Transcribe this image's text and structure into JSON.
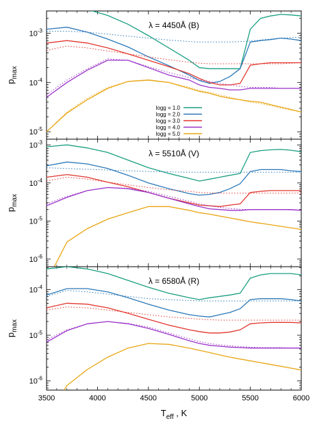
{
  "figure": {
    "xlabel_main": "T",
    "xlabel_sub": "eff",
    "xlabel_tail": " , K",
    "ylabel_main": "p",
    "ylabel_sub": "max"
  },
  "colors": {
    "logg_1.0": "#1a9e82",
    "logg_2.0": "#2a78b8",
    "logg_3.0": "#e2362e",
    "logg_4.0": "#9a32c8",
    "logg_5.0": "#e8a512"
  },
  "chart_data": [
    {
      "type": "line",
      "title": "λ = 4450Å (B)",
      "x": [
        3500,
        3700,
        3900,
        4100,
        4300,
        4500,
        4700,
        4900,
        5000,
        5100,
        5200,
        5300,
        5400,
        5500,
        5600,
        5700,
        5800,
        5900,
        6000
      ],
      "xlim": [
        3500,
        6000
      ],
      "ylim_log": [
        -5.15,
        -2.55
      ],
      "yticks": [
        -5,
        -4,
        -3
      ],
      "ytick_labels": [
        "10^-5",
        "10^-4",
        "10^-3"
      ],
      "legend_position": "center",
      "series": [
        {
          "name": "logg = 1.0",
          "color": "#1a9e82",
          "solid": [
            -2.52,
            -2.47,
            -2.52,
            -2.64,
            -2.82,
            -3.05,
            -3.3,
            -3.55,
            -3.7,
            -3.72,
            -3.72,
            -3.72,
            -3.72,
            -2.92,
            -2.7,
            -2.65,
            -2.62,
            -2.63,
            -2.65
          ],
          "dotted": null
        },
        {
          "name": "logg = 2.0",
          "color": "#2a78b8",
          "solid": [
            -2.92,
            -2.88,
            -2.98,
            -3.12,
            -3.28,
            -3.48,
            -3.66,
            -3.85,
            -3.96,
            -4.02,
            -3.98,
            -3.88,
            -3.72,
            -3.18,
            -3.15,
            -3.13,
            -3.1,
            -3.12,
            -3.15
          ],
          "dotted": [
            -2.96,
            -2.96,
            -2.98,
            -3.02,
            -3.06,
            -3.1,
            -3.14,
            -3.17,
            -3.18,
            -3.18,
            -3.18,
            -3.18,
            -3.17,
            -3.16,
            -3.14,
            -3.12,
            -3.1,
            -3.09,
            -3.08
          ]
        },
        {
          "name": "logg = 3.0",
          "color": "#e2362e",
          "solid": [
            -3.2,
            -3.15,
            -3.2,
            -3.3,
            -3.42,
            -3.55,
            -3.68,
            -3.82,
            -3.92,
            -4.0,
            -4.05,
            -4.05,
            -4.02,
            -3.65,
            -3.62,
            -3.6,
            -3.6,
            -3.6,
            -3.6
          ],
          "dotted": [
            -3.35,
            -3.26,
            -3.3,
            -3.36,
            -3.42,
            -3.48,
            -3.54,
            -3.59,
            -3.61,
            -3.62,
            -3.62,
            -3.62,
            -3.62,
            -3.62,
            -3.62,
            -3.62,
            -3.62,
            -3.61,
            -3.6
          ]
        },
        {
          "name": "logg = 4.0",
          "color": "#9a32c8",
          "solid": [
            -4.3,
            -4.0,
            -3.75,
            -3.55,
            -3.55,
            -3.7,
            -3.85,
            -3.95,
            -4.05,
            -4.1,
            -4.12,
            -4.15,
            -4.15,
            -4.12,
            -4.12,
            -4.12,
            -4.12,
            -4.12,
            -4.12
          ],
          "dotted": [
            -4.25,
            -3.95,
            -3.72,
            -3.52,
            -3.55,
            -3.68,
            -3.8,
            -3.9,
            -3.95,
            -3.98,
            -4.02,
            -4.05,
            -4.08,
            -4.1,
            -4.1,
            -4.1,
            -4.12,
            -4.12,
            -4.12
          ]
        },
        {
          "name": "logg = 5.0",
          "color": "#e8a512",
          "solid": [
            -5.0,
            -4.62,
            -4.35,
            -4.12,
            -3.98,
            -3.95,
            -4.0,
            -4.12,
            -4.18,
            -4.22,
            -4.28,
            -4.32,
            -4.35,
            -4.38,
            -4.4,
            -4.45,
            -4.5,
            -4.55,
            -4.6
          ],
          "dotted": [
            -5.0,
            -4.6,
            -4.32,
            -4.1,
            -3.98,
            -3.96,
            -4.0,
            -4.1,
            -4.16,
            -4.2,
            -4.25,
            -4.3,
            -4.35,
            -4.4,
            -4.43,
            -4.47,
            -4.52,
            -4.56,
            -4.6
          ]
        }
      ]
    },
    {
      "type": "line",
      "title": "λ = 5510Å (V)",
      "x": [
        3500,
        3700,
        3900,
        4100,
        4300,
        4500,
        4700,
        4900,
        5000,
        5100,
        5200,
        5300,
        5400,
        5500,
        5600,
        5700,
        5800,
        5900,
        6000
      ],
      "xlim": [
        3500,
        6000
      ],
      "ylim_log": [
        -6.2,
        -2.85
      ],
      "yticks": [
        -6,
        -5,
        -4,
        -3
      ],
      "ytick_labels": [
        "10^-6",
        "10^-5",
        "10^-4",
        "10^-3"
      ],
      "series": [
        {
          "name": "logg = 1.0",
          "color": "#1a9e82",
          "solid": [
            -3.05,
            -3.0,
            -3.08,
            -3.2,
            -3.4,
            -3.6,
            -3.75,
            -3.88,
            -3.95,
            -3.9,
            -3.85,
            -3.8,
            -3.75,
            -3.2,
            -3.15,
            -3.13,
            -3.12,
            -3.14,
            -3.18
          ],
          "dotted": null
        },
        {
          "name": "logg = 2.0",
          "color": "#2a78b8",
          "solid": [
            -3.55,
            -3.45,
            -3.5,
            -3.62,
            -3.8,
            -4.0,
            -4.15,
            -4.28,
            -4.32,
            -4.3,
            -4.25,
            -4.15,
            -4.02,
            -3.7,
            -3.65,
            -3.65,
            -3.65,
            -3.68,
            -3.7
          ],
          "dotted": [
            -3.6,
            -3.62,
            -3.64,
            -3.66,
            -3.68,
            -3.7,
            -3.71,
            -3.72,
            -3.72,
            -3.72,
            -3.72,
            -3.72,
            -3.72,
            -3.72,
            -3.72,
            -3.72,
            -3.72,
            -3.72,
            -3.72
          ]
        },
        {
          "name": "logg = 3.0",
          "color": "#e2362e",
          "solid": [
            -3.85,
            -3.78,
            -3.85,
            -3.98,
            -4.1,
            -4.25,
            -4.4,
            -4.52,
            -4.58,
            -4.6,
            -4.62,
            -4.58,
            -4.55,
            -4.25,
            -4.22,
            -4.2,
            -4.2,
            -4.2,
            -4.2
          ],
          "dotted": [
            -3.95,
            -3.85,
            -3.9,
            -3.98,
            -4.05,
            -4.12,
            -4.18,
            -4.22,
            -4.25,
            -4.26,
            -4.27,
            -4.27,
            -4.27,
            -4.27,
            -4.27,
            -4.27,
            -4.27,
            -4.27,
            -4.26
          ]
        },
        {
          "name": "logg = 4.0",
          "color": "#9a32c8",
          "solid": [
            -4.6,
            -4.38,
            -4.2,
            -4.12,
            -4.15,
            -4.25,
            -4.4,
            -4.55,
            -4.62,
            -4.68,
            -4.7,
            -4.72,
            -4.72,
            -4.7,
            -4.7,
            -4.7,
            -4.7,
            -4.7,
            -4.72
          ],
          "dotted": [
            -4.55,
            -4.35,
            -4.2,
            -4.12,
            -4.14,
            -4.22,
            -4.35,
            -4.48,
            -4.55,
            -4.6,
            -4.64,
            -4.67,
            -4.69,
            -4.7,
            -4.7,
            -4.7,
            -4.7,
            -4.71,
            -4.72
          ]
        },
        {
          "name": "logg = 5.0",
          "color": "#e8a512",
          "solid": [
            -6.6,
            -5.55,
            -5.2,
            -4.95,
            -4.78,
            -4.62,
            -4.62,
            -4.72,
            -4.78,
            -4.82,
            -4.87,
            -4.92,
            -4.97,
            -5.02,
            -5.06,
            -5.1,
            -5.14,
            -5.18,
            -5.22
          ],
          "dotted": null
        }
      ]
    },
    {
      "type": "line",
      "title": "λ = 6580Å (R)",
      "x": [
        3500,
        3700,
        3900,
        4100,
        4300,
        4500,
        4700,
        4900,
        5000,
        5100,
        5200,
        5300,
        5400,
        5500,
        5600,
        5700,
        5800,
        5900,
        6000
      ],
      "xlim": [
        3500,
        6000
      ],
      "ylim_log": [
        -6.2,
        -3.5
      ],
      "yticks": [
        -6,
        -5,
        -4
      ],
      "ytick_labels": [
        "10^-6",
        "10^-5",
        "10^-4"
      ],
      "series": [
        {
          "name": "logg = 1.0",
          "color": "#1a9e82",
          "solid": [
            -3.55,
            -3.5,
            -3.55,
            -3.65,
            -3.8,
            -3.95,
            -4.08,
            -4.18,
            -4.22,
            -4.18,
            -4.15,
            -4.12,
            -4.08,
            -3.75,
            -3.68,
            -3.65,
            -3.65,
            -3.65,
            -3.68
          ],
          "dotted": null
        },
        {
          "name": "logg = 2.0",
          "color": "#2a78b8",
          "solid": [
            -4.12,
            -3.98,
            -3.98,
            -4.05,
            -4.18,
            -4.32,
            -4.45,
            -4.55,
            -4.58,
            -4.6,
            -4.55,
            -4.5,
            -4.42,
            -4.22,
            -4.2,
            -4.2,
            -4.2,
            -4.22,
            -4.25
          ],
          "dotted": [
            -4.15,
            -4.02,
            -4.05,
            -4.1,
            -4.15,
            -4.2,
            -4.22,
            -4.24,
            -4.25,
            -4.25,
            -4.25,
            -4.25,
            -4.25,
            -4.25,
            -4.25,
            -4.25,
            -4.25,
            -4.25,
            -4.25
          ]
        },
        {
          "name": "logg = 3.0",
          "color": "#e2362e",
          "solid": [
            -4.4,
            -4.3,
            -4.32,
            -4.4,
            -4.52,
            -4.65,
            -4.78,
            -4.88,
            -4.92,
            -4.95,
            -4.95,
            -4.93,
            -4.88,
            -4.75,
            -4.73,
            -4.72,
            -4.72,
            -4.72,
            -4.73
          ],
          "dotted": [
            -4.45,
            -4.38,
            -4.4,
            -4.45,
            -4.5,
            -4.55,
            -4.6,
            -4.63,
            -4.65,
            -4.66,
            -4.67,
            -4.67,
            -4.67,
            -4.67,
            -4.67,
            -4.67,
            -4.67,
            -4.67,
            -4.67
          ]
        },
        {
          "name": "logg = 4.0",
          "color": "#9a32c8",
          "solid": [
            -5.15,
            -4.9,
            -4.75,
            -4.7,
            -4.75,
            -4.85,
            -4.98,
            -5.12,
            -5.18,
            -5.22,
            -5.24,
            -5.26,
            -5.27,
            -5.28,
            -5.28,
            -5.28,
            -5.28,
            -5.28,
            -5.28
          ],
          "dotted": [
            -5.1,
            -4.88,
            -4.75,
            -4.7,
            -4.74,
            -4.82,
            -4.95,
            -5.08,
            -5.14,
            -5.18,
            -5.21,
            -5.23,
            -5.25,
            -5.26,
            -5.27,
            -5.27,
            -5.27,
            -5.28,
            -5.28
          ]
        },
        {
          "name": "logg = 5.0",
          "color": "#e8a512",
          "solid": [
            -6.8,
            -6.1,
            -5.75,
            -5.48,
            -5.28,
            -5.18,
            -5.2,
            -5.28,
            -5.33,
            -5.38,
            -5.43,
            -5.48,
            -5.52,
            -5.56,
            -5.6,
            -5.64,
            -5.68,
            -5.72,
            -5.76
          ],
          "dotted": null
        }
      ]
    }
  ],
  "xticks": [
    3500,
    4000,
    4500,
    5000,
    5500,
    6000
  ],
  "xtick_labels": [
    "3500",
    "4000",
    "4500",
    "5000",
    "5500",
    "6000"
  ]
}
